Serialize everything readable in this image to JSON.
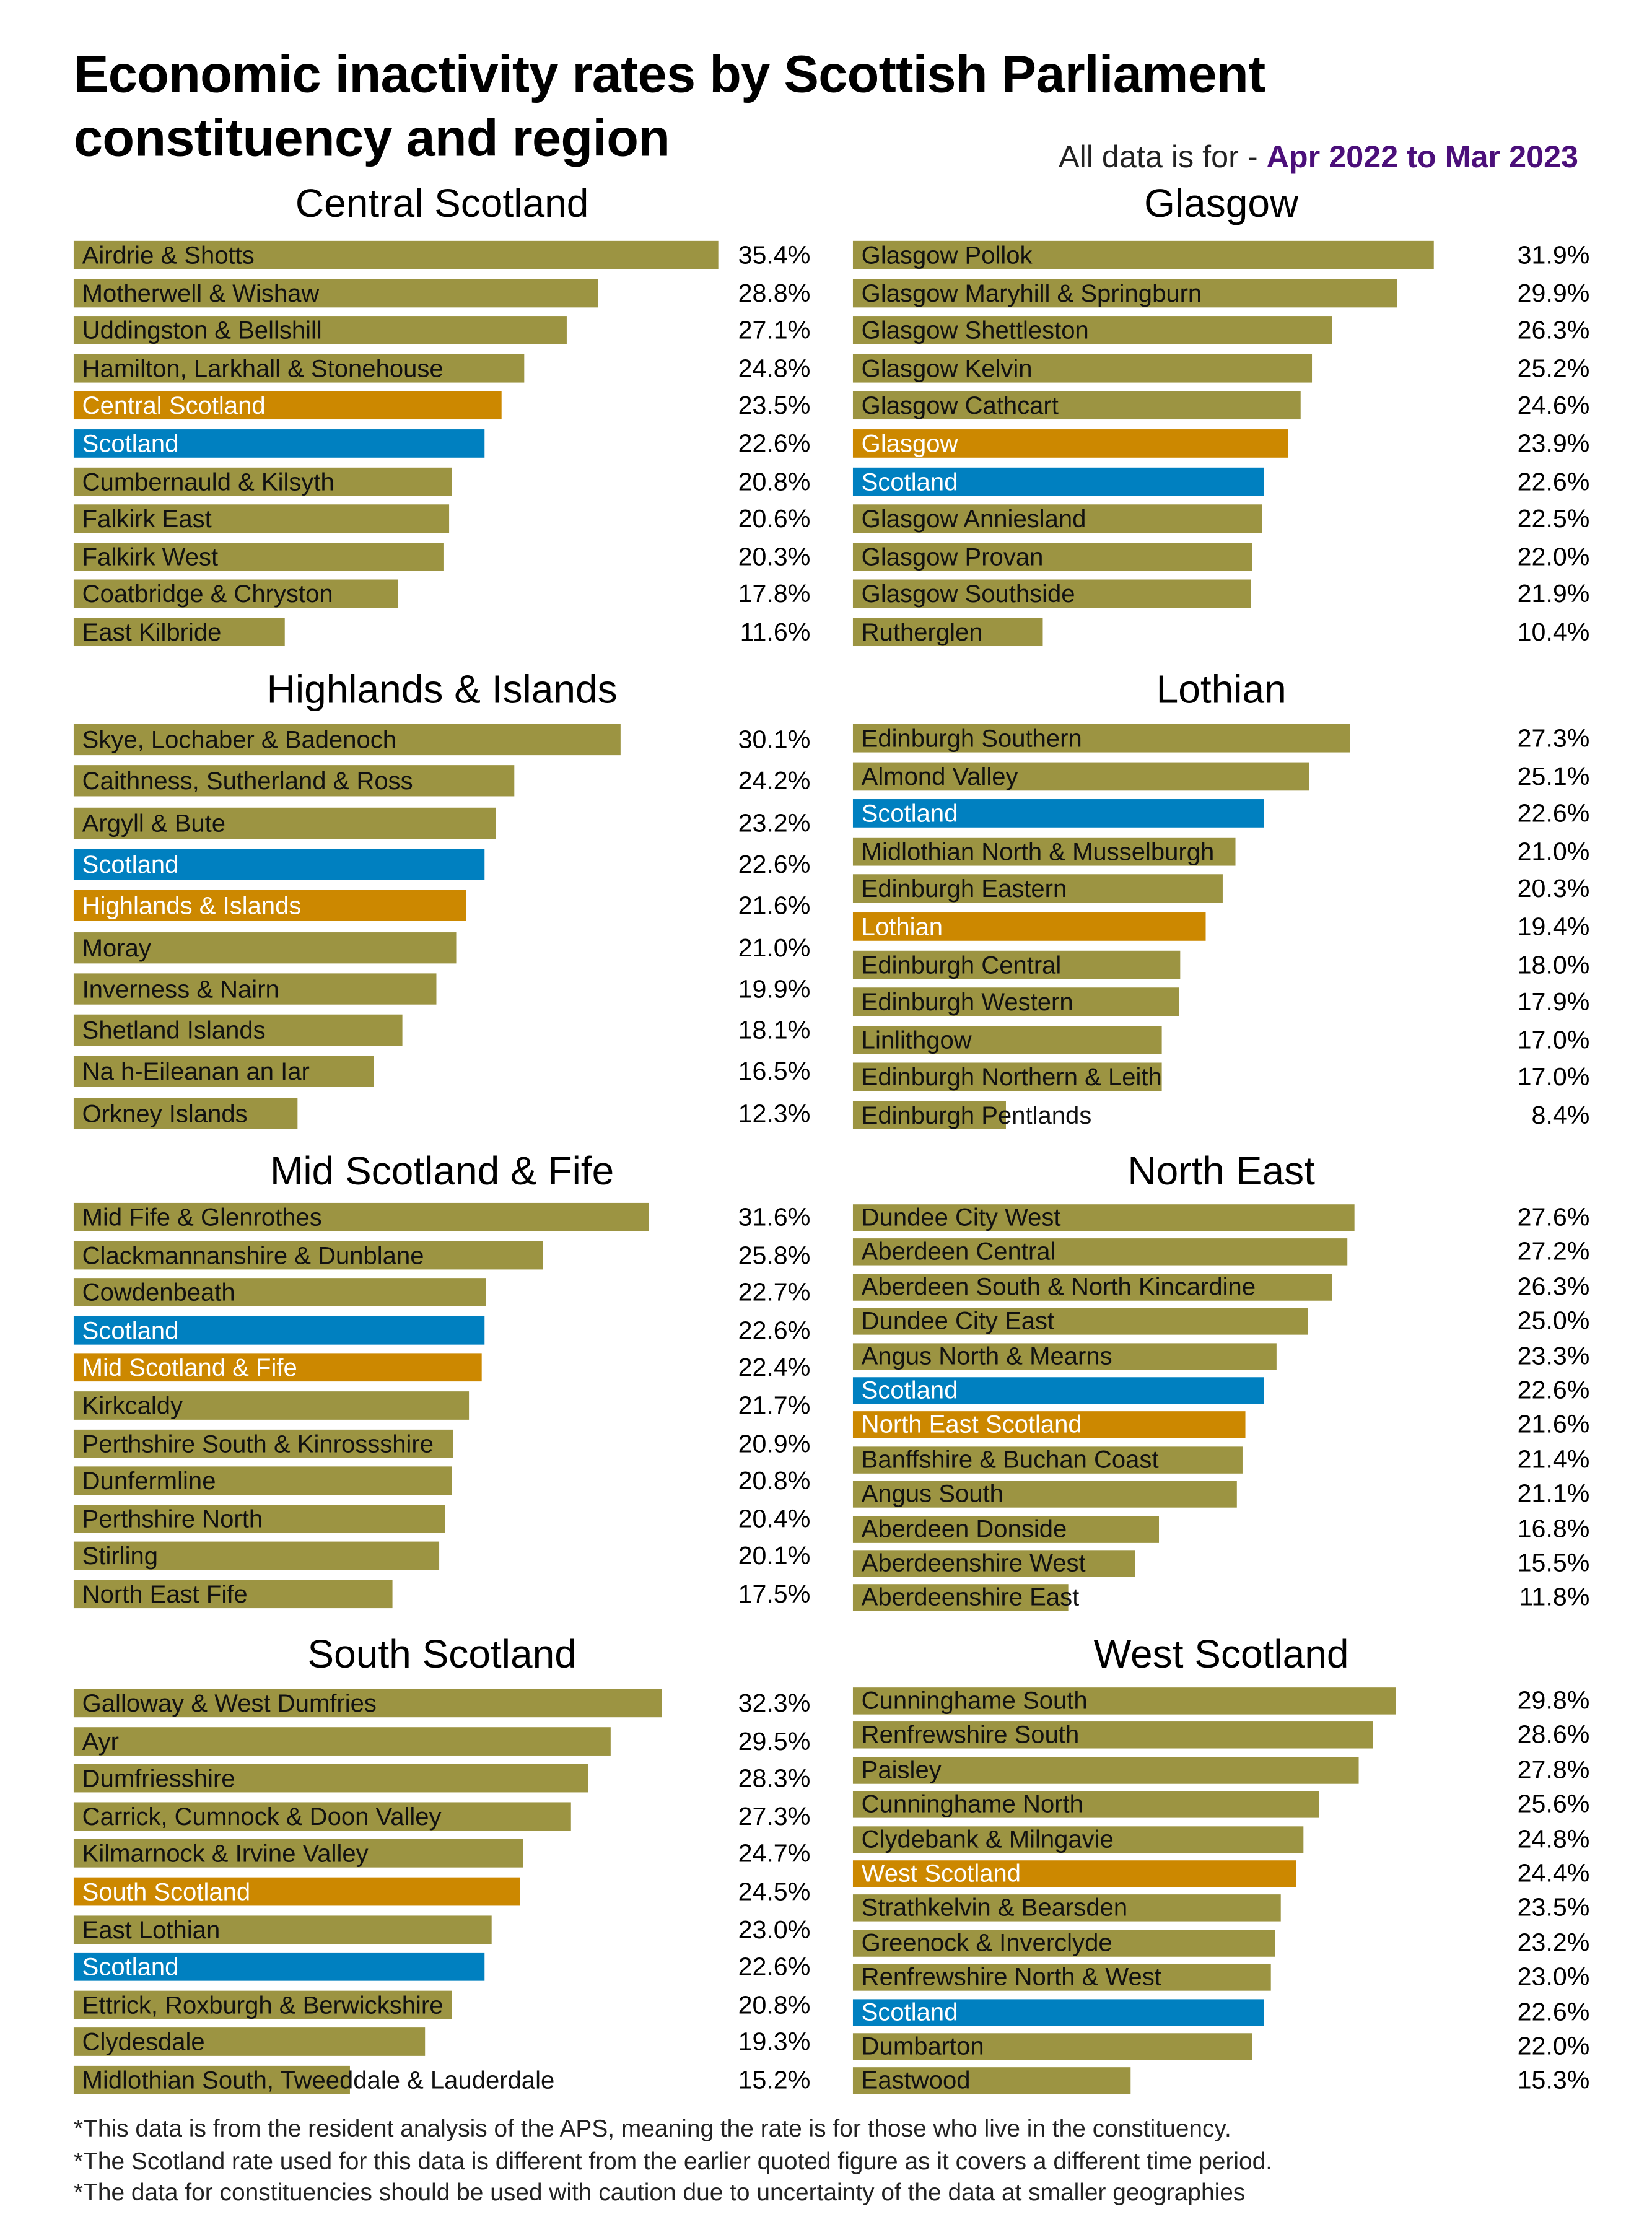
{
  "title_line1": "Economic inactivity rates by Scottish Parliament",
  "title_line2": "constituency and region",
  "subtitle_prefix": "All data is for - ",
  "subtitle_period": "Apr 2022 to Mar 2023",
  "colors": {
    "constituency": "#9c9442",
    "region": "#cc8800",
    "scotland": "#0080c0",
    "period": "#4b0f7a"
  },
  "chart_data": {
    "type": "bar",
    "orientation": "horizontal",
    "unit": "%",
    "panels": [
      {
        "title": "Central Scotland",
        "rows": [
          {
            "label": "Airdrie & Shotts",
            "value": 35.4,
            "display": "35.4%",
            "kind": "constituency"
          },
          {
            "label": "Motherwell & Wishaw",
            "value": 28.8,
            "display": "28.8%",
            "kind": "constituency"
          },
          {
            "label": "Uddingston & Bellshill",
            "value": 27.1,
            "display": "27.1%",
            "kind": "constituency"
          },
          {
            "label": "Hamilton, Larkhall & Stonehouse",
            "value": 24.8,
            "display": "24.8%",
            "kind": "constituency"
          },
          {
            "label": "Central Scotland",
            "value": 23.5,
            "display": "23.5%",
            "kind": "region"
          },
          {
            "label": "Scotland",
            "value": 22.6,
            "display": "22.6%",
            "kind": "scotland"
          },
          {
            "label": "Cumbernauld & Kilsyth",
            "value": 20.8,
            "display": "20.8%",
            "kind": "constituency"
          },
          {
            "label": "Falkirk East",
            "value": 20.6,
            "display": "20.6%",
            "kind": "constituency"
          },
          {
            "label": "Falkirk West",
            "value": 20.3,
            "display": "20.3%",
            "kind": "constituency"
          },
          {
            "label": "Coatbridge & Chryston",
            "value": 17.8,
            "display": "17.8%",
            "kind": "constituency"
          },
          {
            "label": "East Kilbride",
            "value": 11.6,
            "display": "11.6%",
            "kind": "constituency"
          }
        ]
      },
      {
        "title": "Glasgow",
        "rows": [
          {
            "label": "Glasgow Pollok",
            "value": 31.9,
            "display": "31.9%",
            "kind": "constituency"
          },
          {
            "label": "Glasgow Maryhill & Springburn",
            "value": 29.9,
            "display": "29.9%",
            "kind": "constituency"
          },
          {
            "label": "Glasgow Shettleston",
            "value": 26.3,
            "display": "26.3%",
            "kind": "constituency"
          },
          {
            "label": "Glasgow Kelvin",
            "value": 25.2,
            "display": "25.2%",
            "kind": "constituency"
          },
          {
            "label": "Glasgow Cathcart",
            "value": 24.6,
            "display": "24.6%",
            "kind": "constituency"
          },
          {
            "label": "Glasgow",
            "value": 23.9,
            "display": "23.9%",
            "kind": "region"
          },
          {
            "label": "Scotland",
            "value": 22.6,
            "display": "22.6%",
            "kind": "scotland"
          },
          {
            "label": "Glasgow Anniesland",
            "value": 22.5,
            "display": "22.5%",
            "kind": "constituency"
          },
          {
            "label": "Glasgow Provan",
            "value": 22.0,
            "display": "22.0%",
            "kind": "constituency"
          },
          {
            "label": "Glasgow Southside",
            "value": 21.9,
            "display": "21.9%",
            "kind": "constituency"
          },
          {
            "label": "Rutherglen",
            "value": 10.4,
            "display": "10.4%",
            "kind": "constituency"
          }
        ]
      },
      {
        "title": "Highlands & Islands",
        "rows": [
          {
            "label": "Skye, Lochaber & Badenoch",
            "value": 30.1,
            "display": "30.1%",
            "kind": "constituency"
          },
          {
            "label": "Caithness, Sutherland & Ross",
            "value": 24.2,
            "display": "24.2%",
            "kind": "constituency"
          },
          {
            "label": "Argyll & Bute",
            "value": 23.2,
            "display": "23.2%",
            "kind": "constituency"
          },
          {
            "label": "Scotland",
            "value": 22.6,
            "display": "22.6%",
            "kind": "scotland"
          },
          {
            "label": "Highlands & Islands",
            "value": 21.6,
            "display": "21.6%",
            "kind": "region"
          },
          {
            "label": "Moray",
            "value": 21.0,
            "display": "21.0%",
            "kind": "constituency"
          },
          {
            "label": "Inverness & Nairn",
            "value": 19.9,
            "display": "19.9%",
            "kind": "constituency"
          },
          {
            "label": "Shetland Islands",
            "value": 18.1,
            "display": "18.1%",
            "kind": "constituency"
          },
          {
            "label": "Na h-Eileanan an Iar",
            "value": 16.5,
            "display": "16.5%",
            "kind": "constituency"
          },
          {
            "label": "Orkney Islands",
            "value": 12.3,
            "display": "12.3%",
            "kind": "constituency"
          }
        ]
      },
      {
        "title": "Lothian",
        "rows": [
          {
            "label": "Edinburgh Southern",
            "value": 27.3,
            "display": "27.3%",
            "kind": "constituency"
          },
          {
            "label": "Almond Valley",
            "value": 25.1,
            "display": "25.1%",
            "kind": "constituency"
          },
          {
            "label": "Scotland",
            "value": 22.6,
            "display": "22.6%",
            "kind": "scotland"
          },
          {
            "label": "Midlothian North & Musselburgh",
            "value": 21.0,
            "display": "21.0%",
            "kind": "constituency"
          },
          {
            "label": "Edinburgh Eastern",
            "value": 20.3,
            "display": "20.3%",
            "kind": "constituency"
          },
          {
            "label": "Lothian",
            "value": 19.4,
            "display": "19.4%",
            "kind": "region"
          },
          {
            "label": "Edinburgh Central",
            "value": 18.0,
            "display": "18.0%",
            "kind": "constituency"
          },
          {
            "label": "Edinburgh Western",
            "value": 17.9,
            "display": "17.9%",
            "kind": "constituency"
          },
          {
            "label": "Linlithgow",
            "value": 17.0,
            "display": "17.0%",
            "kind": "constituency"
          },
          {
            "label": "Edinburgh Northern & Leith",
            "value": 17.0,
            "display": "17.0%",
            "kind": "constituency"
          },
          {
            "label": "Edinburgh Pentlands",
            "value": 8.4,
            "display": "8.4%",
            "kind": "constituency"
          }
        ]
      },
      {
        "title": "Mid Scotland & Fife",
        "rows": [
          {
            "label": "Mid Fife & Glenrothes",
            "value": 31.6,
            "display": "31.6%",
            "kind": "constituency"
          },
          {
            "label": "Clackmannanshire & Dunblane",
            "value": 25.8,
            "display": "25.8%",
            "kind": "constituency"
          },
          {
            "label": "Cowdenbeath",
            "value": 22.7,
            "display": "22.7%",
            "kind": "constituency"
          },
          {
            "label": "Scotland",
            "value": 22.6,
            "display": "22.6%",
            "kind": "scotland"
          },
          {
            "label": "Mid Scotland & Fife",
            "value": 22.4,
            "display": "22.4%",
            "kind": "region"
          },
          {
            "label": "Kirkcaldy",
            "value": 21.7,
            "display": "21.7%",
            "kind": "constituency"
          },
          {
            "label": "Perthshire South & Kinrossshire",
            "value": 20.9,
            "display": "20.9%",
            "kind": "constituency"
          },
          {
            "label": "Dunfermline",
            "value": 20.8,
            "display": "20.8%",
            "kind": "constituency"
          },
          {
            "label": "Perthshire North",
            "value": 20.4,
            "display": "20.4%",
            "kind": "constituency"
          },
          {
            "label": "Stirling",
            "value": 20.1,
            "display": "20.1%",
            "kind": "constituency"
          },
          {
            "label": "North East Fife",
            "value": 17.5,
            "display": "17.5%",
            "kind": "constituency"
          }
        ]
      },
      {
        "title": "North East",
        "rows": [
          {
            "label": "Dundee City West",
            "value": 27.6,
            "display": "27.6%",
            "kind": "constituency"
          },
          {
            "label": "Aberdeen Central",
            "value": 27.2,
            "display": "27.2%",
            "kind": "constituency"
          },
          {
            "label": "Aberdeen South & North Kincardine",
            "value": 26.3,
            "display": "26.3%",
            "kind": "constituency"
          },
          {
            "label": "Dundee City East",
            "value": 25.0,
            "display": "25.0%",
            "kind": "constituency"
          },
          {
            "label": "Angus North & Mearns",
            "value": 23.3,
            "display": "23.3%",
            "kind": "constituency"
          },
          {
            "label": "Scotland",
            "value": 22.6,
            "display": "22.6%",
            "kind": "scotland"
          },
          {
            "label": "North East Scotland",
            "value": 21.6,
            "display": "21.6%",
            "kind": "region"
          },
          {
            "label": "Banffshire & Buchan Coast",
            "value": 21.4,
            "display": "21.4%",
            "kind": "constituency"
          },
          {
            "label": "Angus South",
            "value": 21.1,
            "display": "21.1%",
            "kind": "constituency"
          },
          {
            "label": "Aberdeen Donside",
            "value": 16.8,
            "display": "16.8%",
            "kind": "constituency"
          },
          {
            "label": "Aberdeenshire West",
            "value": 15.5,
            "display": "15.5%",
            "kind": "constituency"
          },
          {
            "label": "Aberdeenshire East",
            "value": 11.8,
            "display": "11.8%",
            "kind": "constituency"
          }
        ]
      },
      {
        "title": "South Scotland",
        "rows": [
          {
            "label": "Galloway & West Dumfries",
            "value": 32.3,
            "display": "32.3%",
            "kind": "constituency"
          },
          {
            "label": "Ayr",
            "value": 29.5,
            "display": "29.5%",
            "kind": "constituency"
          },
          {
            "label": "Dumfriesshire",
            "value": 28.3,
            "display": "28.3%",
            "kind": "constituency"
          },
          {
            "label": "Carrick, Cumnock & Doon Valley",
            "value": 27.3,
            "display": "27.3%",
            "kind": "constituency"
          },
          {
            "label": "Kilmarnock & Irvine Valley",
            "value": 24.7,
            "display": "24.7%",
            "kind": "constituency"
          },
          {
            "label": "South Scotland",
            "value": 24.5,
            "display": "24.5%",
            "kind": "region"
          },
          {
            "label": "East Lothian",
            "value": 23.0,
            "display": "23.0%",
            "kind": "constituency"
          },
          {
            "label": "Scotland",
            "value": 22.6,
            "display": "22.6%",
            "kind": "scotland"
          },
          {
            "label": "Ettrick, Roxburgh & Berwickshire",
            "value": 20.8,
            "display": "20.8%",
            "kind": "constituency"
          },
          {
            "label": "Clydesdale",
            "value": 19.3,
            "display": "19.3%",
            "kind": "constituency"
          },
          {
            "label": "Midlothian South, Tweeddale & Lauderdale",
            "value": 15.2,
            "display": "15.2%",
            "kind": "constituency"
          }
        ]
      },
      {
        "title": "West Scotland",
        "rows": [
          {
            "label": "Cunninghame South",
            "value": 29.8,
            "display": "29.8%",
            "kind": "constituency"
          },
          {
            "label": "Renfrewshire South",
            "value": 28.6,
            "display": "28.6%",
            "kind": "constituency"
          },
          {
            "label": "Paisley",
            "value": 27.8,
            "display": "27.8%",
            "kind": "constituency"
          },
          {
            "label": "Cunninghame North",
            "value": 25.6,
            "display": "25.6%",
            "kind": "constituency"
          },
          {
            "label": "Clydebank & Milngavie",
            "value": 24.8,
            "display": "24.8%",
            "kind": "constituency"
          },
          {
            "label": "West Scotland",
            "value": 24.4,
            "display": "24.4%",
            "kind": "region"
          },
          {
            "label": "Strathkelvin & Bearsden",
            "value": 23.5,
            "display": "23.5%",
            "kind": "constituency"
          },
          {
            "label": "Greenock & Inverclyde",
            "value": 23.2,
            "display": "23.2%",
            "kind": "constituency"
          },
          {
            "label": "Renfrewshire North & West",
            "value": 23.0,
            "display": "23.0%",
            "kind": "constituency"
          },
          {
            "label": "Scotland",
            "value": 22.6,
            "display": "22.6%",
            "kind": "scotland"
          },
          {
            "label": "Dumbarton",
            "value": 22.0,
            "display": "22.0%",
            "kind": "constituency"
          },
          {
            "label": "Eastwood",
            "value": 15.3,
            "display": "15.3%",
            "kind": "constituency"
          }
        ]
      }
    ]
  },
  "footnotes": [
    "*This data is from the resident analysis of the APS, meaning the rate is for those who live in the constituency.",
    "*The Scotland rate used for this data is different from the earlier quoted figure as it covers a different time period.",
    "*The data for constituencies should be used with caution due to uncertainty of the data at smaller geographies"
  ]
}
